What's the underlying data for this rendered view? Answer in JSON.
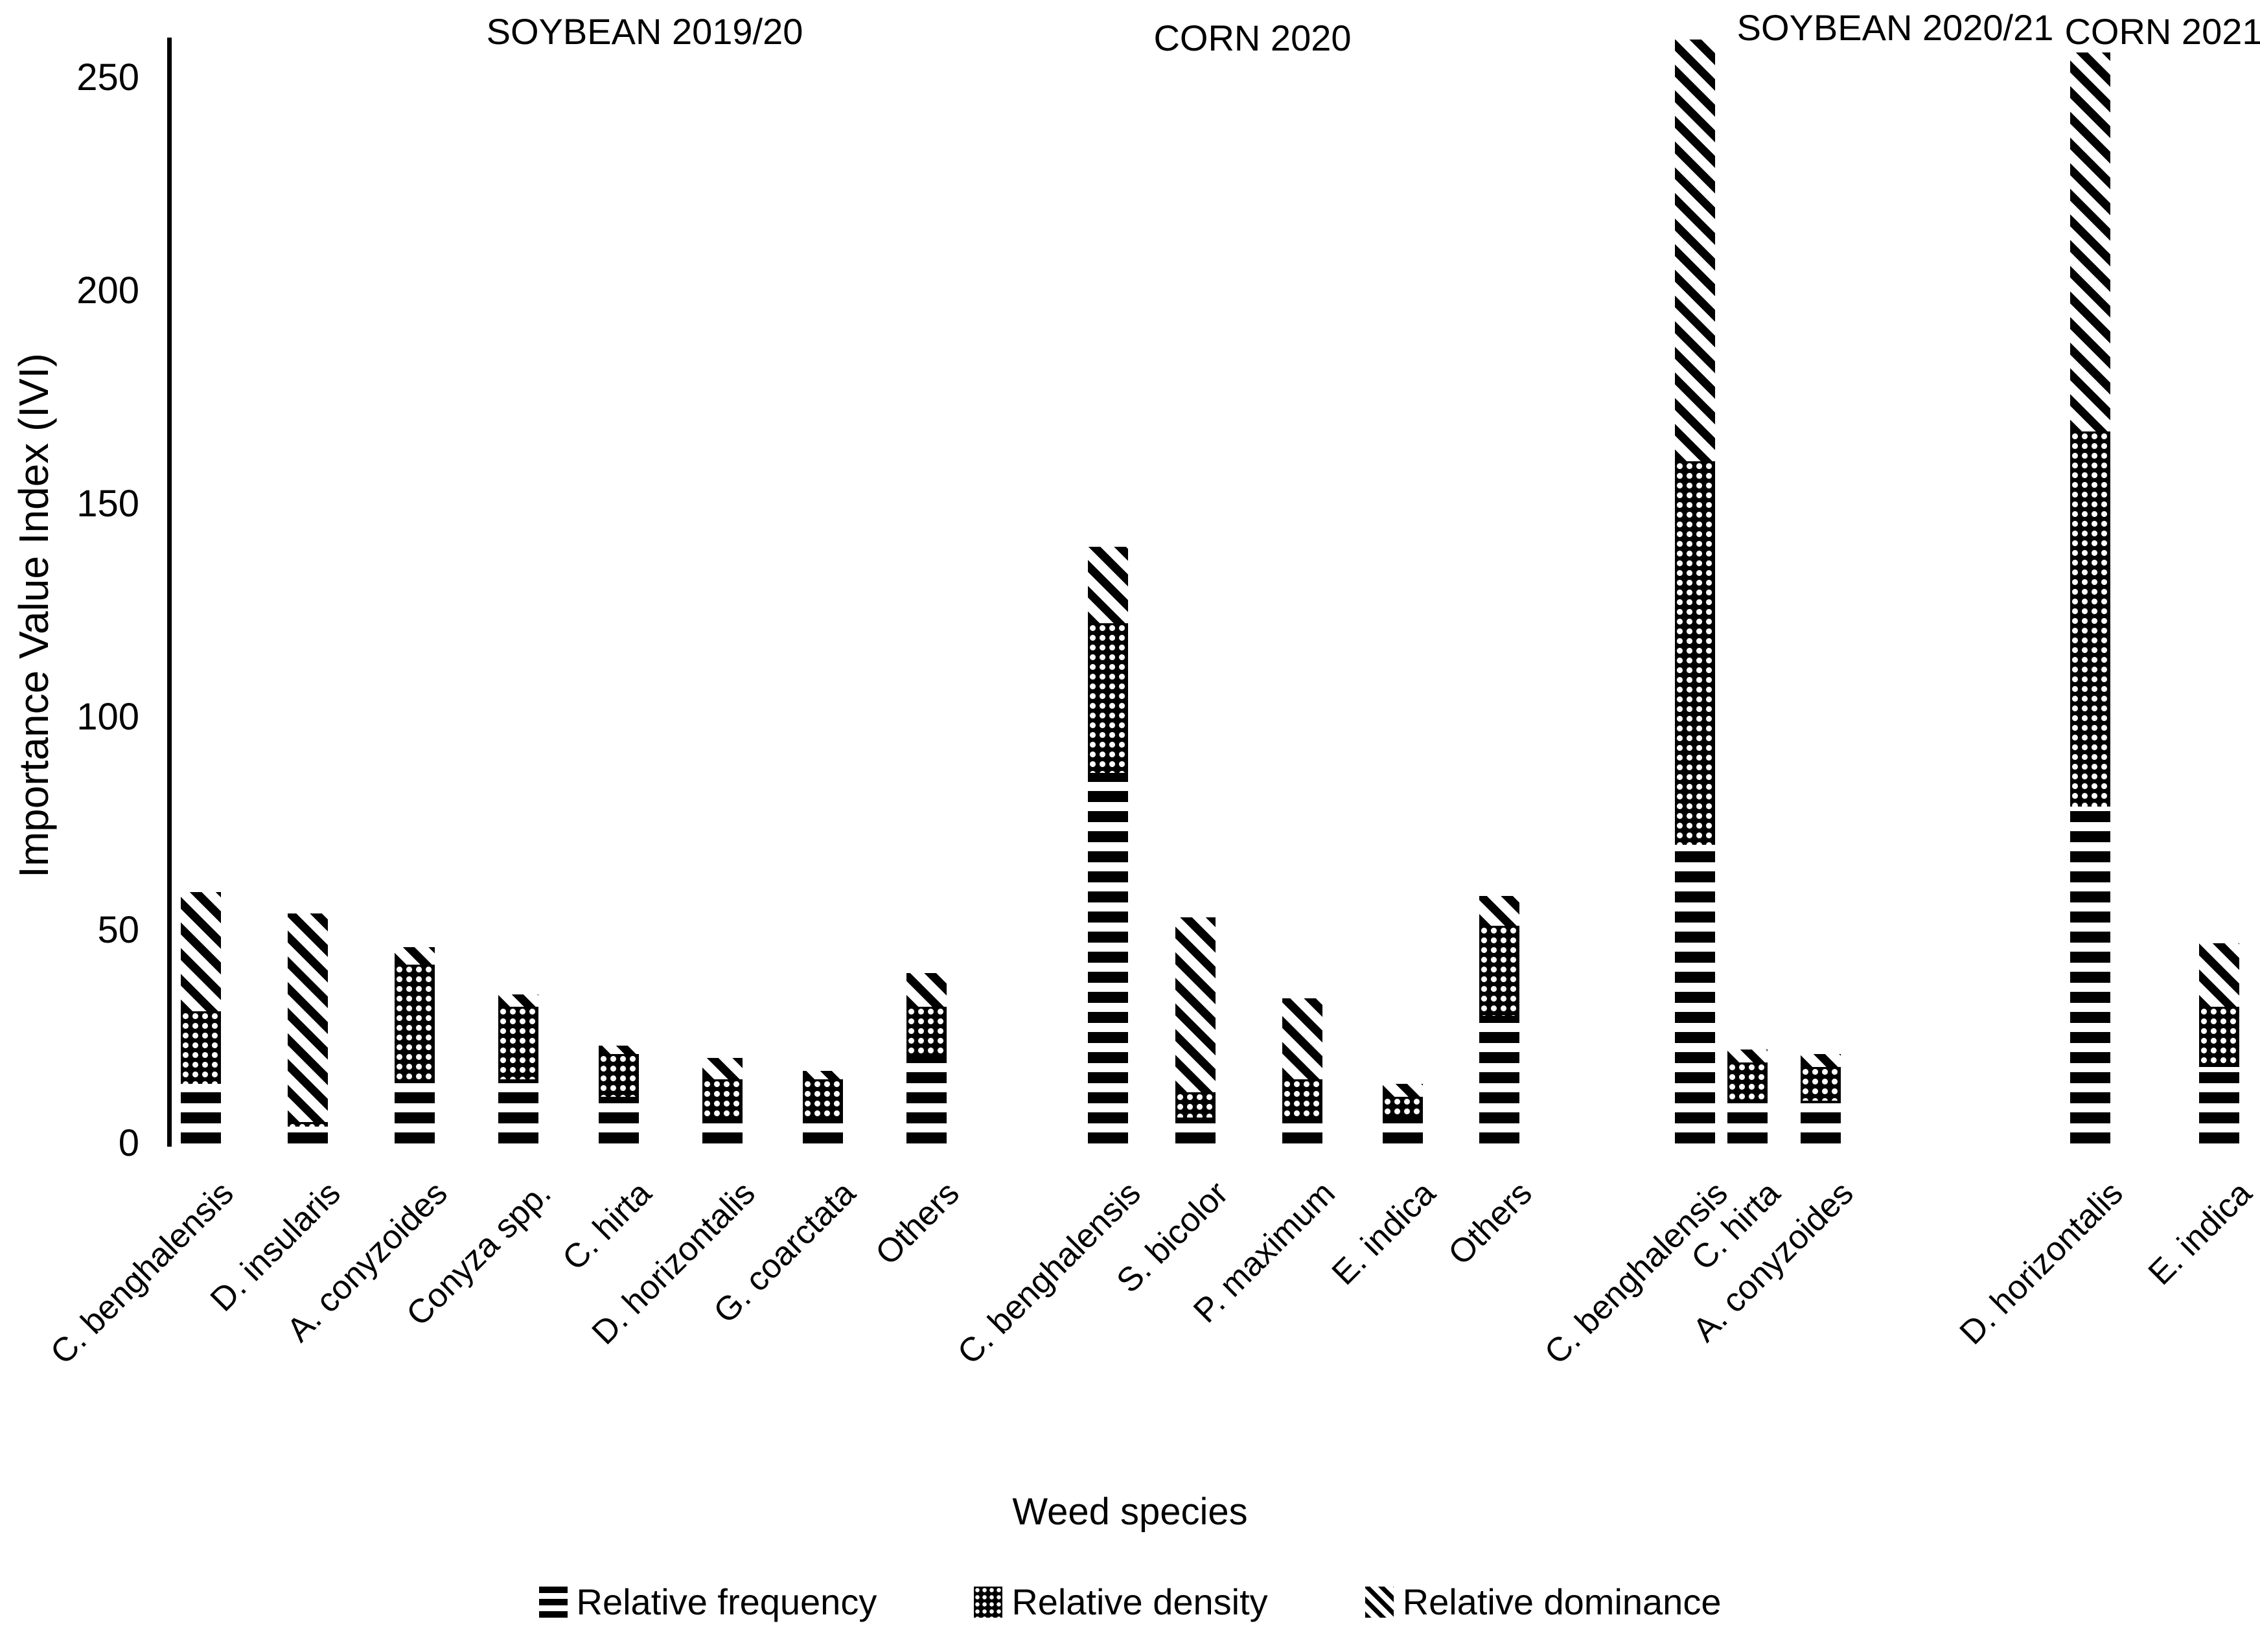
{
  "y_axis": {
    "title": "Importance Value Index (IVI)"
  },
  "x_axis": {
    "title": "Weed species"
  },
  "legend": {
    "items": [
      {
        "label": "Relative frequency",
        "pattern": "frequency"
      },
      {
        "label": "Relative density",
        "pattern": "density"
      },
      {
        "label": "Relative dominance",
        "pattern": "dominance"
      }
    ]
  },
  "colors": {
    "foreground": "#000000",
    "background": "#ffffff"
  },
  "chart_data": {
    "type": "bar",
    "stacked": true,
    "title": "",
    "ylabel": "Importance Value Index (IVI)",
    "xlabel": "Weed species",
    "ylim": [
      0,
      260
    ],
    "y_tick_values": [
      0,
      50,
      100,
      150,
      200,
      250
    ],
    "grid": false,
    "legend_position": "bottom",
    "series": [
      "Relative frequency",
      "Relative density",
      "Relative dominance"
    ],
    "groups": [
      {
        "title": "SOYBEAN 2019/20",
        "bars": [
          {
            "species": "C. benghalensis",
            "frequency": 14,
            "density": 17,
            "dominance": 28
          },
          {
            "species": "D. insularis",
            "frequency": 4,
            "density": 1,
            "dominance": 49
          },
          {
            "species": "A. conyzoides",
            "frequency": 15,
            "density": 27,
            "dominance": 4
          },
          {
            "species": "Conyza spp.",
            "frequency": 15,
            "density": 17,
            "dominance": 3
          },
          {
            "species": "C. hirta",
            "frequency": 11,
            "density": 10,
            "dominance": 2
          },
          {
            "species": "D. horizontalis",
            "frequency": 6,
            "density": 9,
            "dominance": 5
          },
          {
            "species": "G. coarctata",
            "frequency": 6,
            "density": 9,
            "dominance": 2
          },
          {
            "species": "Others",
            "frequency": 21,
            "density": 11,
            "dominance": 8
          }
        ]
      },
      {
        "title": "CORN 2020",
        "bars": [
          {
            "species": "C. benghalensis",
            "frequency": 87,
            "density": 35,
            "dominance": 18
          },
          {
            "species": "S. bicolor",
            "frequency": 6,
            "density": 6,
            "dominance": 41
          },
          {
            "species": "P. maximum",
            "frequency": 6,
            "density": 9,
            "dominance": 19
          },
          {
            "species": "E. indica",
            "frequency": 6,
            "density": 5,
            "dominance": 3
          },
          {
            "species": "Others",
            "frequency": 30,
            "density": 21,
            "dominance": 7
          }
        ]
      },
      {
        "title": "SOYBEAN 2020/21",
        "bars": [
          {
            "species": "C. benghalensis",
            "frequency": 70,
            "density": 90,
            "dominance": 99
          },
          {
            "species": "C. hirta",
            "frequency": 10,
            "density": 9,
            "dominance": 3
          },
          {
            "species": "A. conyzoides",
            "frequency": 10,
            "density": 8,
            "dominance": 3
          }
        ]
      },
      {
        "title": "CORN 2021",
        "bars": [
          {
            "species": "D. horizontalis",
            "frequency": 79,
            "density": 88,
            "dominance": 89
          },
          {
            "species": "E. indica",
            "frequency": 18,
            "density": 14,
            "dominance": 15
          }
        ]
      }
    ]
  }
}
